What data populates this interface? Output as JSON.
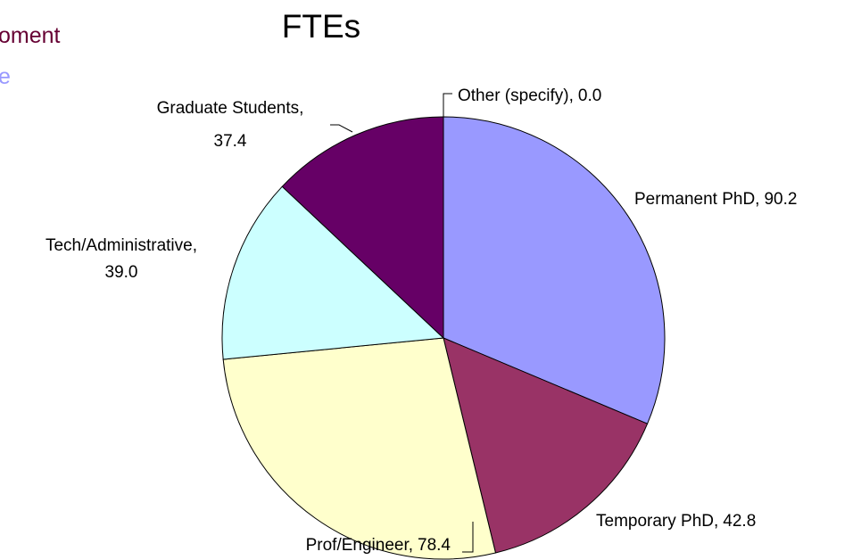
{
  "side_texts": [
    {
      "text": "oment",
      "color": "#660033"
    },
    {
      "text": "e",
      "color": "#9999ff"
    }
  ],
  "chart_data": {
    "type": "pie",
    "title": "FTEs",
    "categories": [
      "Other (specify),",
      "Permanent PhD,",
      "Temporary PhD,",
      "Prof/Engineer,",
      "Tech/Administrative,",
      "Graduate Students,"
    ],
    "values": [
      0,
      90.2,
      42.8,
      78.4,
      39.0,
      37.4
    ],
    "value_labels": [
      "0.0",
      "90.2",
      "42.8",
      "78.4",
      "39.0",
      "37.4"
    ],
    "colors": [
      "#ffffff",
      "#9999ff",
      "#993366",
      "#ffffcc",
      "#ccffff",
      "#660066"
    ]
  }
}
